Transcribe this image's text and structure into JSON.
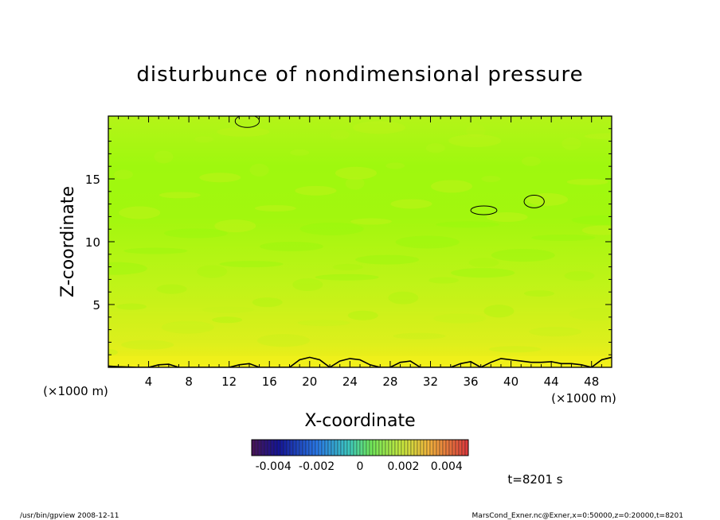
{
  "chart_data": {
    "type": "heatmap",
    "title": "disturbunce of nondimensional pressure",
    "xlabel": "X-coordinate",
    "ylabel": "Z-coordinate",
    "x_unit": "(×1000 m)",
    "y_unit": "(×1000 m)",
    "xlim": [
      0,
      50
    ],
    "ylim": [
      0,
      20
    ],
    "x_ticks": [
      4,
      8,
      12,
      16,
      20,
      24,
      28,
      32,
      36,
      40,
      44,
      48
    ],
    "x_tick_labels": [
      "4",
      "8",
      "12",
      "16",
      "20",
      "24",
      "28",
      "32",
      "36",
      "40",
      "44",
      "48"
    ],
    "y_ticks": [
      5,
      10,
      15
    ],
    "y_tick_labels": [
      "5",
      "10",
      "15"
    ],
    "grid": false,
    "colorbar": {
      "range": [
        -0.005,
        0.005
      ],
      "tick_values": [
        -0.004,
        -0.002,
        0,
        0.002,
        0.004
      ],
      "tick_labels": [
        "-0.004",
        "-0.002",
        "0",
        "0.002",
        "0.004"
      ]
    },
    "contours_0_level": {
      "bottom_x": [
        0,
        1,
        3,
        4,
        5,
        6,
        7,
        8,
        9,
        10,
        11,
        12,
        13,
        14,
        15,
        16,
        17,
        18,
        19,
        20,
        21,
        22,
        23,
        24,
        25,
        26,
        27,
        28,
        29,
        30,
        31,
        32,
        33,
        34,
        35,
        36,
        37,
        38,
        39,
        40,
        41,
        42,
        43,
        44,
        45,
        46,
        47,
        48,
        49,
        50
      ],
      "bottom_z": [
        0.1,
        0.05,
        0.0,
        0.0,
        0.2,
        0.25,
        0.0,
        0.0,
        0.0,
        0.0,
        0.0,
        0.0,
        0.2,
        0.3,
        0.0,
        0.0,
        0.0,
        0.0,
        0.6,
        0.8,
        0.6,
        0.0,
        0.5,
        0.7,
        0.6,
        0.2,
        0.0,
        0.0,
        0.4,
        0.5,
        0.0,
        0.0,
        0.0,
        0.0,
        0.3,
        0.45,
        0.0,
        0.4,
        0.7,
        0.6,
        0.5,
        0.4,
        0.4,
        0.45,
        0.3,
        0.3,
        0.2,
        0.0,
        0.6,
        0.8
      ]
    },
    "contour_loops": [
      {
        "cx": 37.3,
        "cz": 12.5,
        "rx": 1.3,
        "rz": 0.35
      },
      {
        "cx": 42.3,
        "cz": 13.2,
        "rx": 1.0,
        "rz": 0.5
      },
      {
        "cx": 13.8,
        "cz": 19.6,
        "rx": 1.2,
        "rz": 0.5
      }
    ]
  },
  "time_label": "t=8201 s",
  "footer_left": "/usr/bin/gpview   2008-12-11",
  "footer_right": "MarsCond_Exner.nc@Exner,x=0:50000,z=0:20000,t=8201",
  "colors": {
    "field_low": "#f2f01a",
    "field_mid": "#c8f31c",
    "field_high": "#9cf80a"
  }
}
